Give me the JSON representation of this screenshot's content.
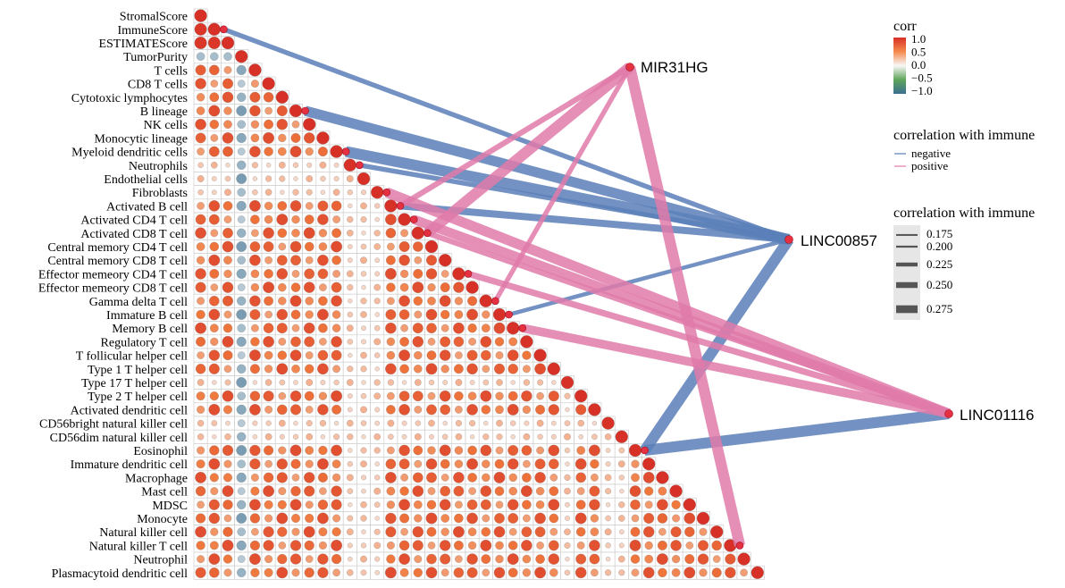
{
  "chart_data": {
    "type": "heatmap",
    "subtype": "correlation lower-triangle matrix with gene-immune correlation network",
    "rows": [
      "StromalScore",
      "ImmuneScore",
      "ESTIMATEScore",
      "TumorPurity",
      "T cells",
      "CD8 T cells",
      "Cytotoxic lymphocytes",
      "B lineage",
      "NK cells",
      "Monocytic lineage",
      "Myeloid dendritic cells",
      "Neutrophils",
      "Endothelial cells",
      "Fibroblasts",
      "Activated B cell",
      "Activated CD4 T cell",
      "Activated CD8 T cell",
      "Central memory CD4 T cell",
      "Central memory CD8 T cell",
      "Effector memeory CD4 T cell",
      "Effector memeory CD8 T cell",
      "Gamma delta T cell",
      "Immature  B cell",
      "Memory B cell",
      "Regulatory T cell",
      "T follicular helper cell",
      "Type 1 T helper cell",
      "Type 17 T helper cell",
      "Type 2 T helper cell",
      "Activated dendritic cell",
      "CD56bright natural killer cell",
      "CD56dim natural killer cell",
      "Eosinophil",
      "Immature dendritic cell",
      "Macrophage",
      "Mast cell",
      "MDSC",
      "Monocyte",
      "Natural killer cell",
      "Natural killer T cell",
      "Neutrophil",
      "Plasmacytoid dendritic cell"
    ],
    "genes": [
      {
        "name": "MIR31HG"
      },
      {
        "name": "LINC00857"
      },
      {
        "name": "LINC01116"
      }
    ],
    "links": [
      {
        "gene": "LINC00857",
        "target": "ImmuneScore",
        "sign": "negative",
        "value": 0.19
      },
      {
        "gene": "LINC00857",
        "target": "B lineage",
        "sign": "negative",
        "value": 0.26
      },
      {
        "gene": "LINC00857",
        "target": "Myeloid dendritic cells",
        "sign": "negative",
        "value": 0.27
      },
      {
        "gene": "LINC00857",
        "target": "Neutrophils",
        "sign": "negative",
        "value": 0.19
      },
      {
        "gene": "LINC00857",
        "target": "Activated B cell",
        "sign": "negative",
        "value": 0.22
      },
      {
        "gene": "LINC00857",
        "target": "Immature  B cell",
        "sign": "negative",
        "value": 0.18
      },
      {
        "gene": "LINC00857",
        "target": "Eosinophil",
        "sign": "negative",
        "value": 0.27
      },
      {
        "gene": "LINC01116",
        "target": "Eosinophil",
        "sign": "negative",
        "value": 0.27
      },
      {
        "gene": "MIR31HG",
        "target": "Activated CD8 T cell",
        "sign": "positive",
        "value": 0.27
      },
      {
        "gene": "MIR31HG",
        "target": "Activated B cell",
        "sign": "positive",
        "value": 0.2
      },
      {
        "gene": "MIR31HG",
        "target": "Gamma delta T cell",
        "sign": "positive",
        "value": 0.19
      },
      {
        "gene": "MIR31HG",
        "target": "Natural killer T cell",
        "sign": "positive",
        "value": 0.27
      },
      {
        "gene": "LINC01116",
        "target": "Fibroblasts",
        "sign": "positive",
        "value": 0.26
      },
      {
        "gene": "LINC01116",
        "target": "Activated CD4 T cell",
        "sign": "positive",
        "value": 0.25
      },
      {
        "gene": "LINC01116",
        "target": "Effector memeory CD4 T cell",
        "sign": "positive",
        "value": 0.21
      },
      {
        "gene": "LINC01116",
        "target": "Memory B cell",
        "sign": "positive",
        "value": 0.24
      },
      {
        "gene": "LINC01116",
        "target": "Activated CD8 T cell",
        "sign": "positive",
        "value": 0.2
      }
    ],
    "legend": {
      "colorbar": {
        "title": "corr",
        "ticks": [
          "1.0",
          "0.5",
          "0.0",
          "−0.5",
          "−1.0"
        ],
        "low_color": "#3a6f91",
        "mid_color": "#f8f8f8",
        "high_color": "#d73027"
      },
      "sign": {
        "title": "correlation with immune",
        "items": [
          {
            "label": "negative",
            "color": "#5b7fb9"
          },
          {
            "label": "positive",
            "color": "#e17aa9"
          }
        ]
      },
      "width": {
        "title": "correlation with immune",
        "items": [
          "0.175",
          "0.200",
          "0.225",
          "0.250",
          "0.275"
        ]
      }
    },
    "grid": true
  }
}
